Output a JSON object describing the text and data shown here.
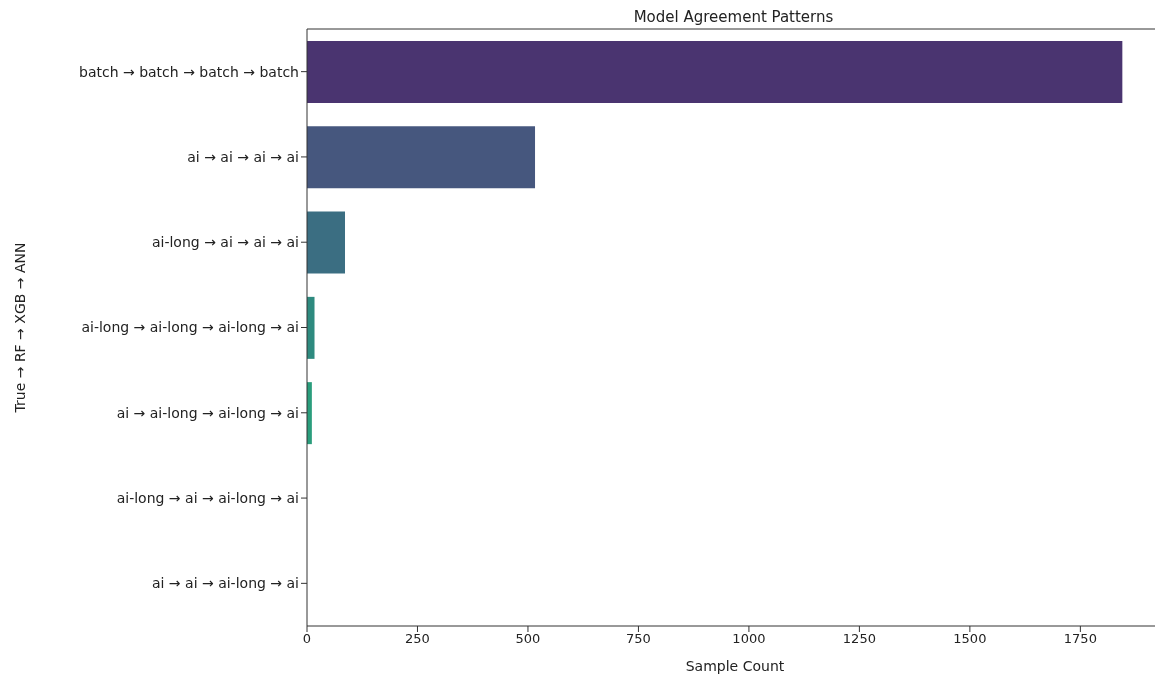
{
  "chart_data": {
    "type": "bar",
    "orientation": "horizontal",
    "title": "Model Agreement Patterns",
    "xlabel": "Sample Count",
    "ylabel": "True → RF → XGB → ANN",
    "categories": [
      "batch → batch → batch → batch",
      "ai → ai → ai → ai",
      "ai-long → ai → ai → ai",
      "ai-long → ai-long → ai-long → ai",
      "ai → ai-long → ai-long → ai",
      "ai-long → ai → ai-long → ai",
      "ai → ai → ai-long → ai"
    ],
    "values": [
      1845,
      516,
      86,
      17,
      11,
      null,
      null
    ],
    "colors": [
      "#4a3470",
      "#46577e",
      "#3b6e82",
      "#2e8a7f",
      "#2a9d7c",
      "#4fb870",
      "#84cc5a"
    ],
    "xlim": [
      0,
      1937
    ],
    "xticks": [
      0,
      250,
      500,
      750,
      1000,
      1250,
      1500,
      1750
    ],
    "grid": false
  }
}
